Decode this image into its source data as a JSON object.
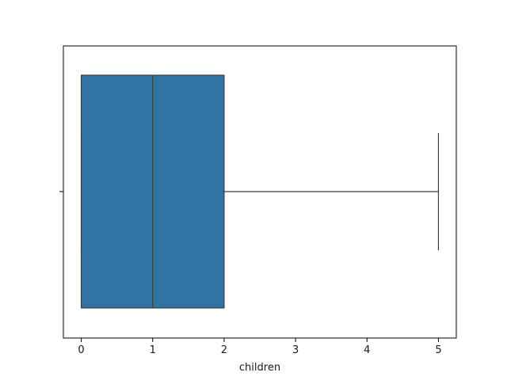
{
  "chart_data": {
    "type": "box",
    "orientation": "horizontal",
    "variable": "children",
    "xlabel": "children",
    "ylabel": "",
    "xlim": [
      -0.25,
      5.25
    ],
    "xticks": [
      0,
      1,
      2,
      3,
      4,
      5
    ],
    "grid": false,
    "legend": "none",
    "box": {
      "whisker_low": 0,
      "q1": 0,
      "median": 1,
      "q3": 2,
      "whisker_high": 5
    },
    "colors": {
      "box_fill": "#3274a1",
      "line": "#3d3d3d",
      "axis": "#000000"
    }
  }
}
